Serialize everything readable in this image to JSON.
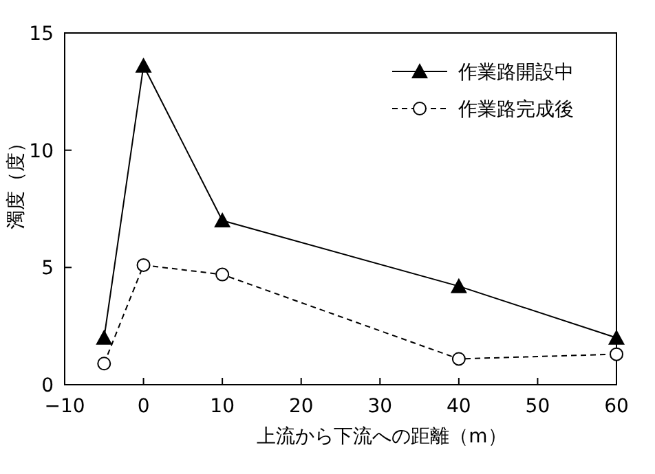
{
  "chart_data": {
    "type": "line",
    "xlabel": "上流から下流への距離（m）",
    "ylabel": "濁度（度）",
    "x": [
      -5,
      0,
      10,
      40,
      60
    ],
    "series": [
      {
        "name": "作業路開設中",
        "color": "#000000",
        "marker": "triangle",
        "line_style": "solid",
        "values": [
          2.0,
          13.6,
          7.0,
          4.2,
          2.0
        ]
      },
      {
        "name": "作業路完成後",
        "color": "#000000",
        "marker": "circle",
        "line_style": "dashed",
        "values": [
          0.9,
          5.1,
          4.7,
          1.1,
          1.3
        ]
      }
    ],
    "xlim": [
      -10,
      60
    ],
    "xticks": [
      -10,
      0,
      10,
      20,
      30,
      40,
      50,
      60
    ],
    "ylim": [
      0,
      15
    ],
    "yticks": [
      0,
      5,
      10,
      15
    ],
    "grid": false,
    "legend": "top right"
  }
}
